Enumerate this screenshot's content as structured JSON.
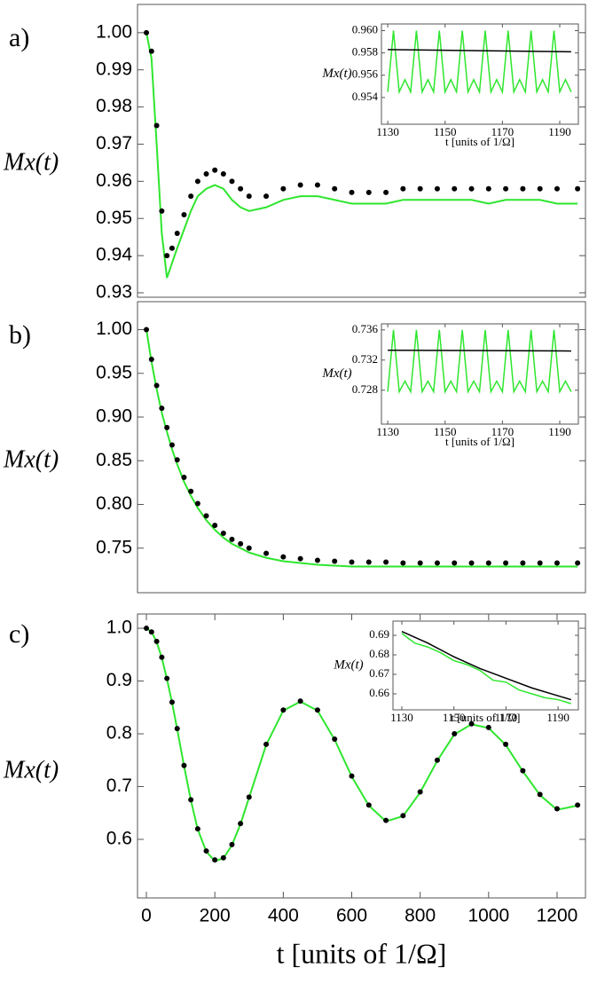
{
  "chart_data": [
    {
      "type": "line",
      "panel_label": "a)",
      "ylabel": "Mx(t)",
      "x": [
        0,
        15,
        30,
        45,
        60,
        75,
        90,
        110,
        130,
        150,
        175,
        200,
        225,
        250,
        275,
        300,
        350,
        400,
        450,
        500,
        550,
        600,
        650,
        700,
        750,
        800,
        850,
        900,
        950,
        1000,
        1050,
        1100,
        1150,
        1200,
        1260
      ],
      "series": [
        {
          "color": "#2ee62e",
          "style": "line",
          "values": [
            1.0,
            0.993,
            0.97,
            0.946,
            0.934,
            0.938,
            0.942,
            0.947,
            0.952,
            0.956,
            0.958,
            0.959,
            0.958,
            0.955,
            0.953,
            0.952,
            0.953,
            0.955,
            0.956,
            0.956,
            0.955,
            0.954,
            0.954,
            0.954,
            0.955,
            0.955,
            0.955,
            0.955,
            0.955,
            0.954,
            0.955,
            0.955,
            0.955,
            0.954,
            0.954
          ]
        },
        {
          "color": "#000000",
          "style": "dots",
          "values": [
            1.0,
            0.995,
            0.975,
            0.952,
            0.94,
            0.942,
            0.946,
            0.951,
            0.956,
            0.96,
            0.962,
            0.963,
            0.962,
            0.96,
            0.958,
            0.956,
            0.956,
            0.958,
            0.959,
            0.959,
            0.958,
            0.957,
            0.957,
            0.957,
            0.958,
            0.958,
            0.958,
            0.958,
            0.958,
            0.958,
            0.958,
            0.958,
            0.958,
            0.958,
            0.958
          ]
        }
      ],
      "xlim": [
        -26,
        1283
      ],
      "ylim": [
        0.9288,
        1.0076
      ],
      "yticks": [
        0.93,
        0.94,
        0.95,
        0.96,
        0.97,
        0.98,
        0.99,
        {
          "value": 1.0,
          "label": "1.00"
        }
      ]
    },
    {
      "type": "line",
      "ylabel": "Mx(t)",
      "xlabel": "t [units of 1/Ω]",
      "series": [
        {
          "color": "#2ee62e",
          "style": "line",
          "x": [
            1130,
            1132,
            1134,
            1136,
            1138,
            1140,
            1142,
            1144,
            1146,
            1148,
            1150,
            1152,
            1154,
            1156,
            1158,
            1160,
            1162,
            1164,
            1166,
            1168,
            1170,
            1172,
            1174,
            1176,
            1178,
            1180,
            1182,
            1184,
            1186,
            1188,
            1190,
            1192,
            1194
          ],
          "values": [
            0.9545,
            0.96,
            0.9545,
            0.9556,
            0.9545,
            0.96,
            0.9545,
            0.9556,
            0.9545,
            0.96,
            0.9545,
            0.9556,
            0.9545,
            0.96,
            0.9545,
            0.9556,
            0.9545,
            0.96,
            0.9545,
            0.9556,
            0.9545,
            0.96,
            0.9545,
            0.9556,
            0.9545,
            0.96,
            0.9545,
            0.9556,
            0.9545,
            0.96,
            0.9545,
            0.9556,
            0.9545
          ]
        },
        {
          "color": "#000000",
          "style": "line",
          "x": [
            1130,
            1194
          ],
          "values": [
            0.9583,
            0.9581
          ]
        }
      ],
      "xlim": [
        1127.8,
        1196.5
      ],
      "ylim": [
        0.9516,
        0.9606
      ],
      "xticks": [
        1130,
        1150,
        1170,
        1190
      ],
      "yticks": [
        0.954,
        0.956,
        0.958,
        {
          "value": 0.96,
          "label": "0.960"
        }
      ]
    },
    {
      "type": "line",
      "panel_label": "b)",
      "ylabel": "Mx(t)",
      "x": [
        0,
        15,
        30,
        45,
        60,
        75,
        90,
        110,
        130,
        150,
        175,
        200,
        225,
        250,
        275,
        300,
        350,
        400,
        450,
        500,
        550,
        600,
        650,
        700,
        750,
        800,
        850,
        900,
        950,
        1000,
        1050,
        1100,
        1150,
        1200,
        1260
      ],
      "series": [
        {
          "color": "#2ee62e",
          "style": "line",
          "values": [
            1.0,
            0.963,
            0.932,
            0.905,
            0.883,
            0.863,
            0.846,
            0.826,
            0.81,
            0.796,
            0.782,
            0.771,
            0.762,
            0.755,
            0.75,
            0.745,
            0.739,
            0.735,
            0.733,
            0.731,
            0.73,
            0.729,
            0.729,
            0.729,
            0.729,
            0.729,
            0.729,
            0.729,
            0.729,
            0.729,
            0.729,
            0.729,
            0.729,
            0.729,
            0.729
          ]
        },
        {
          "color": "#000000",
          "style": "dots",
          "values": [
            1.0,
            0.966,
            0.936,
            0.91,
            0.888,
            0.868,
            0.851,
            0.831,
            0.815,
            0.801,
            0.787,
            0.776,
            0.767,
            0.76,
            0.755,
            0.75,
            0.744,
            0.74,
            0.738,
            0.736,
            0.735,
            0.734,
            0.734,
            0.734,
            0.733,
            0.733,
            0.733,
            0.733,
            0.733,
            0.733,
            0.733,
            0.733,
            0.733,
            0.733,
            0.733
          ]
        }
      ],
      "xlim": [
        -26,
        1283
      ],
      "ylim": [
        0.699,
        1.032
      ],
      "yticks": [
        0.75,
        {
          "value": 0.8,
          "label": "0.80"
        },
        0.85,
        {
          "value": 0.9,
          "label": "0.90"
        },
        0.95,
        {
          "value": 1.0,
          "label": "1.00"
        }
      ]
    },
    {
      "type": "line",
      "ylabel": "Mx(t)",
      "xlabel": "t [units of 1/Ω]",
      "series": [
        {
          "color": "#2ee62e",
          "style": "line",
          "x": [
            1130,
            1132,
            1134,
            1136,
            1138,
            1140,
            1142,
            1144,
            1146,
            1148,
            1150,
            1152,
            1154,
            1156,
            1158,
            1160,
            1162,
            1164,
            1166,
            1168,
            1170,
            1172,
            1174,
            1176,
            1178,
            1180,
            1182,
            1184,
            1186,
            1188,
            1190,
            1192,
            1194
          ],
          "values": [
            0.7278,
            0.736,
            0.7278,
            0.7292,
            0.7278,
            0.736,
            0.7278,
            0.7292,
            0.7278,
            0.736,
            0.7278,
            0.7292,
            0.7278,
            0.736,
            0.7278,
            0.7292,
            0.7278,
            0.736,
            0.7278,
            0.7292,
            0.7278,
            0.736,
            0.7278,
            0.7292,
            0.7278,
            0.736,
            0.7278,
            0.7292,
            0.7278,
            0.736,
            0.7278,
            0.7292,
            0.7278
          ]
        },
        {
          "color": "#000000",
          "style": "line",
          "x": [
            1130,
            1194
          ],
          "values": [
            0.7333,
            0.7332
          ]
        }
      ],
      "xlim": [
        1127.8,
        1196.5
      ],
      "ylim": [
        0.7235,
        0.7368
      ],
      "xticks": [
        1130,
        1150,
        1170,
        1190
      ],
      "yticks": [
        0.728,
        0.732,
        0.736
      ]
    },
    {
      "type": "line",
      "panel_label": "c)",
      "ylabel": "Mx(t)",
      "xlabel": "t [units of 1/Ω]",
      "x": [
        0,
        15,
        30,
        45,
        60,
        75,
        90,
        110,
        130,
        150,
        175,
        200,
        225,
        250,
        275,
        300,
        350,
        400,
        450,
        500,
        550,
        600,
        650,
        700,
        750,
        800,
        850,
        900,
        950,
        1000,
        1050,
        1100,
        1150,
        1200,
        1260
      ],
      "series": [
        {
          "color": "#2ee62e",
          "style": "line",
          "values": [
            1.0,
            0.993,
            0.974,
            0.944,
            0.904,
            0.859,
            0.809,
            0.739,
            0.674,
            0.619,
            0.577,
            0.559,
            0.564,
            0.589,
            0.629,
            0.679,
            0.779,
            0.844,
            0.861,
            0.844,
            0.789,
            0.719,
            0.664,
            0.634,
            0.644,
            0.689,
            0.749,
            0.799,
            0.818,
            0.811,
            0.779,
            0.729,
            0.684,
            0.656,
            0.664
          ]
        },
        {
          "color": "#000000",
          "style": "dots",
          "values": [
            1.0,
            0.993,
            0.975,
            0.945,
            0.905,
            0.86,
            0.81,
            0.74,
            0.675,
            0.62,
            0.578,
            0.561,
            0.565,
            0.59,
            0.63,
            0.68,
            0.78,
            0.845,
            0.862,
            0.845,
            0.79,
            0.72,
            0.665,
            0.636,
            0.645,
            0.69,
            0.75,
            0.8,
            0.819,
            0.812,
            0.78,
            0.73,
            0.685,
            0.658,
            0.665
          ]
        }
      ],
      "xlim": [
        -26,
        1283
      ],
      "ylim": [
        0.489,
        1.027
      ],
      "xticks": [
        0,
        200,
        400,
        600,
        800,
        1000,
        1200
      ],
      "yticks": [
        0.6,
        0.7,
        0.8,
        0.9,
        {
          "value": 1.0,
          "label": "1.0"
        }
      ]
    },
    {
      "type": "line",
      "ylabel": "Mx(t)",
      "xlabel": "t [units of 1/Ω]",
      "series": [
        {
          "color": "#2ee62e",
          "style": "line",
          "x": [
            1130,
            1135,
            1140,
            1145,
            1150,
            1155,
            1160,
            1165,
            1170,
            1175,
            1180,
            1185,
            1190,
            1195
          ],
          "values": [
            0.691,
            0.686,
            0.684,
            0.681,
            0.677,
            0.675,
            0.672,
            0.667,
            0.666,
            0.662,
            0.66,
            0.658,
            0.657,
            0.655
          ]
        },
        {
          "color": "#000000",
          "style": "line",
          "x": [
            1130,
            1140,
            1150,
            1160,
            1170,
            1180,
            1190,
            1195
          ],
          "values": [
            0.692,
            0.686,
            0.679,
            0.673,
            0.668,
            0.663,
            0.659,
            0.657
          ]
        }
      ],
      "xlim": [
        1126.6,
        1197.8
      ],
      "ylim": [
        0.6518,
        0.6973
      ],
      "xticks": [
        1130,
        1150,
        1170,
        1190
      ],
      "yticks": [
        0.66,
        0.67,
        0.68,
        0.69
      ]
    }
  ]
}
